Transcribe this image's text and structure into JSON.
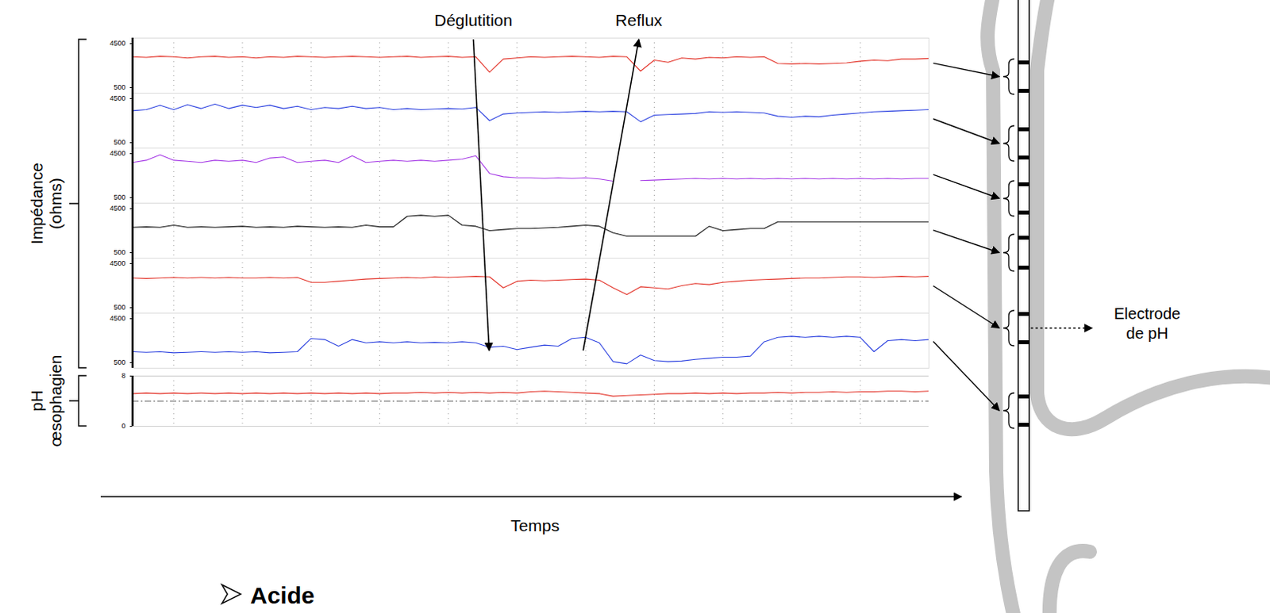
{
  "chart_data": {
    "type": "line",
    "x_label": "Temps",
    "xlim": [
      4,
      120
    ],
    "xticks": [
      10,
      20,
      30,
      40,
      50,
      60,
      70,
      80,
      90,
      100,
      110
    ],
    "tick_labels": "y",
    "grid": true,
    "x": [
      4,
      6,
      8,
      10,
      12,
      14,
      16,
      18,
      20,
      22,
      24,
      26,
      28,
      30,
      32,
      34,
      36,
      38,
      40,
      42,
      44,
      46,
      48,
      50,
      52,
      54,
      56,
      58,
      60,
      62,
      64,
      66,
      68,
      70,
      72,
      74,
      76,
      78,
      80,
      82,
      84,
      86,
      88,
      90,
      92,
      94,
      96,
      98,
      100,
      102,
      104,
      106,
      108,
      110,
      112,
      114,
      116,
      118,
      120
    ],
    "annotations": [
      {
        "text": "Déglutition",
        "x_text": 53.7,
        "x_point": 56
      },
      {
        "text": "Reflux",
        "x_text": 77.8,
        "x_point": 69.7
      }
    ],
    "electrode_label": "Electrode de pH",
    "footer": "Acide",
    "panels": [
      {
        "y_label": "Impédance (ohms)",
        "ylim": [
          0,
          5000
        ],
        "yticks": [
          500,
          4500
        ],
        "series": [
          {
            "color": "#e3342a",
            "values": [
              3300,
              3250,
              3350,
              3300,
              3200,
              3300,
              3350,
              3250,
              3300,
              3200,
              3300,
              3250,
              3350,
              3300,
              3250,
              3300,
              3350,
              3300,
              3250,
              3300,
              3350,
              3250,
              3300,
              3350,
              3250,
              3300,
              1900,
              3100,
              3200,
              3300,
              3250,
              3300,
              3350,
              3300,
              3250,
              3350,
              3300,
              2000,
              3000,
              2800,
              3200,
              3100,
              3250,
              3200,
              3300,
              3250,
              3300,
              2700,
              2650,
              2700,
              2650,
              2700,
              2750,
              2900,
              3000,
              2950,
              3100,
              3100,
              3150
            ]
          },
          {
            "color": "#2f44e0",
            "values": [
              3400,
              3500,
              3900,
              3500,
              3950,
              3600,
              4000,
              3600,
              3900,
              3700,
              3900,
              3600,
              3800,
              3500,
              3700,
              3600,
              3800,
              3600,
              3700,
              3500,
              3600,
              3500,
              3550,
              3600,
              3550,
              3700,
              2500,
              3100,
              3200,
              3250,
              3300,
              3250,
              3300,
              3350,
              3300,
              3350,
              3300,
              2400,
              3000,
              3050,
              3100,
              3150,
              3300,
              3250,
              3300,
              3250,
              3200,
              2900,
              2800,
              2900,
              2850,
              3000,
              3100,
              3200,
              3300,
              3350,
              3400,
              3450,
              3500
            ]
          },
          {
            "color": "#a63be6",
            "values": [
              3700,
              3900,
              4400,
              3900,
              3800,
              3700,
              3900,
              3800,
              3900,
              3700,
              4100,
              4200,
              3700,
              3800,
              3900,
              3700,
              4300,
              3700,
              3800,
              3900,
              3800,
              3900,
              3800,
              3900,
              4000,
              4300,
              2700,
              2400,
              2300,
              2300,
              2250,
              2300,
              2250,
              2300,
              2200,
              2000,
              null,
              2050,
              2100,
              2150,
              2200,
              2250,
              2200,
              2250,
              2200,
              2250,
              2200,
              2250,
              2200,
              2250,
              2200,
              2250,
              2200,
              2250,
              2200,
              2250,
              2200,
              2250,
              2250
            ]
          },
          {
            "color": "#111111",
            "values": [
              2800,
              2850,
              2800,
              3000,
              2800,
              2850,
              2800,
              2850,
              2900,
              2800,
              2850,
              2800,
              2900,
              2850,
              2800,
              2850,
              2800,
              3000,
              2850,
              2850,
              3800,
              3900,
              3800,
              3900,
              3000,
              2900,
              2500,
              2600,
              2700,
              2700,
              2750,
              2800,
              2900,
              3000,
              2900,
              2300,
              2000,
              2000,
              2000,
              2000,
              2000,
              2000,
              2900,
              2500,
              2600,
              2700,
              2700,
              3300,
              3300,
              3300,
              3300,
              3300,
              3300,
              3300,
              3300,
              3300,
              3300,
              3300,
              3300
            ]
          },
          {
            "color": "#e3342a",
            "values": [
              3200,
              3150,
              3200,
              3250,
              3200,
              3250,
              3200,
              3250,
              3200,
              3200,
              3250,
              3200,
              3250,
              2800,
              2800,
              2900,
              3000,
              3100,
              3150,
              3200,
              3250,
              3200,
              3300,
              3250,
              3300,
              3350,
              3300,
              2300,
              2900,
              3000,
              2950,
              3000,
              3050,
              3100,
              3000,
              2300,
              1700,
              2400,
              2300,
              2200,
              2500,
              2700,
              2600,
              2800,
              2900,
              3000,
              3050,
              3100,
              3150,
              3200,
              3200,
              3250,
              3300,
              3300,
              3250,
              3300,
              3350,
              3300,
              3350
            ]
          },
          {
            "color": "#2f44e0",
            "values": [
              1500,
              1450,
              1500,
              1400,
              1450,
              1500,
              1450,
              1500,
              1450,
              1500,
              1400,
              1450,
              1500,
              2700,
              2600,
              2000,
              2600,
              2300,
              2400,
              2300,
              2400,
              2300,
              2350,
              2300,
              2400,
              2300,
              1900,
              2000,
              1700,
              1900,
              2100,
              2000,
              2700,
              2800,
              2300,
              600,
              400,
              1200,
              700,
              600,
              650,
              800,
              900,
              1000,
              1000,
              1100,
              2400,
              2800,
              2900,
              2800,
              2900,
              2800,
              2900,
              2800,
              1500,
              2500,
              2600,
              2500,
              2600
            ]
          }
        ]
      },
      {
        "y_label": "pH œsophagien",
        "ylim": [
          0,
          8
        ],
        "yticks": [
          0,
          8
        ],
        "threshold": 4,
        "series": [
          {
            "color": "#e3342a",
            "values": [
              5.2,
              5.3,
              5.2,
              5.3,
              5.2,
              5.3,
              5.2,
              5.3,
              5.2,
              5.3,
              5.2,
              5.3,
              5.2,
              5.3,
              5.2,
              5.3,
              5.2,
              5.3,
              5.2,
              5.3,
              5.3,
              5.4,
              5.3,
              5.4,
              5.3,
              5.4,
              5.3,
              5.4,
              5.3,
              5.5,
              5.6,
              5.5,
              5.4,
              5.3,
              5.2,
              4.8,
              4.9,
              5.0,
              5.1,
              5.2,
              5.2,
              5.3,
              5.2,
              5.3,
              5.2,
              5.3,
              5.3,
              5.4,
              5.3,
              5.4,
              5.4,
              5.5,
              5.4,
              5.5,
              5.5,
              5.6,
              5.6,
              5.5,
              5.6
            ]
          }
        ]
      }
    ]
  }
}
